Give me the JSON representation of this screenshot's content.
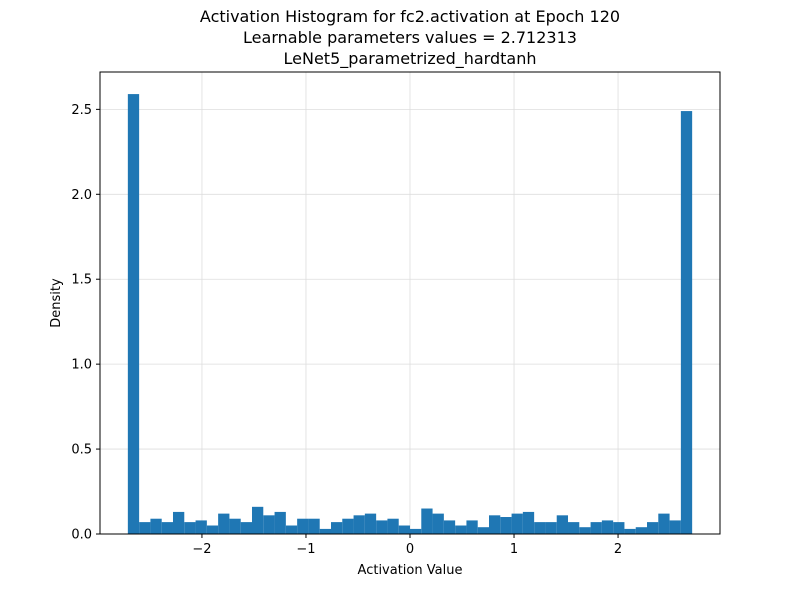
{
  "chart_data": {
    "type": "bar",
    "title_lines": [
      "Activation Histogram for fc2.activation at Epoch 120",
      "Learnable parameters values = 2.712313",
      "LeNet5_parametrized_hardtanh"
    ],
    "xlabel": "Activation Value",
    "ylabel": "Density",
    "xlim": [
      -2.98,
      2.98
    ],
    "ylim": [
      0,
      2.72
    ],
    "grid": true,
    "bar_color": "#1f77b4",
    "bins": {
      "start": -2.712313,
      "end": 2.712313,
      "count": 50
    },
    "values": [
      2.59,
      0.07,
      0.09,
      0.07,
      0.13,
      0.07,
      0.08,
      0.05,
      0.12,
      0.09,
      0.07,
      0.16,
      0.11,
      0.13,
      0.05,
      0.09,
      0.09,
      0.03,
      0.07,
      0.09,
      0.11,
      0.12,
      0.08,
      0.09,
      0.05,
      0.03,
      0.15,
      0.12,
      0.08,
      0.05,
      0.08,
      0.04,
      0.11,
      0.1,
      0.12,
      0.13,
      0.07,
      0.07,
      0.11,
      0.07,
      0.04,
      0.07,
      0.08,
      0.07,
      0.03,
      0.04,
      0.07,
      0.12,
      0.08,
      2.49
    ],
    "xticks": [
      {
        "value": -2,
        "label": "−2"
      },
      {
        "value": -1,
        "label": "−1"
      },
      {
        "value": 0,
        "label": "0"
      },
      {
        "value": 1,
        "label": "1"
      },
      {
        "value": 2,
        "label": "2"
      }
    ],
    "yticks": [
      {
        "value": 0.0,
        "label": "0.0"
      },
      {
        "value": 0.5,
        "label": "0.5"
      },
      {
        "value": 1.0,
        "label": "1.0"
      },
      {
        "value": 1.5,
        "label": "1.5"
      },
      {
        "value": 2.0,
        "label": "2.0"
      },
      {
        "value": 2.5,
        "label": "2.5"
      }
    ]
  }
}
